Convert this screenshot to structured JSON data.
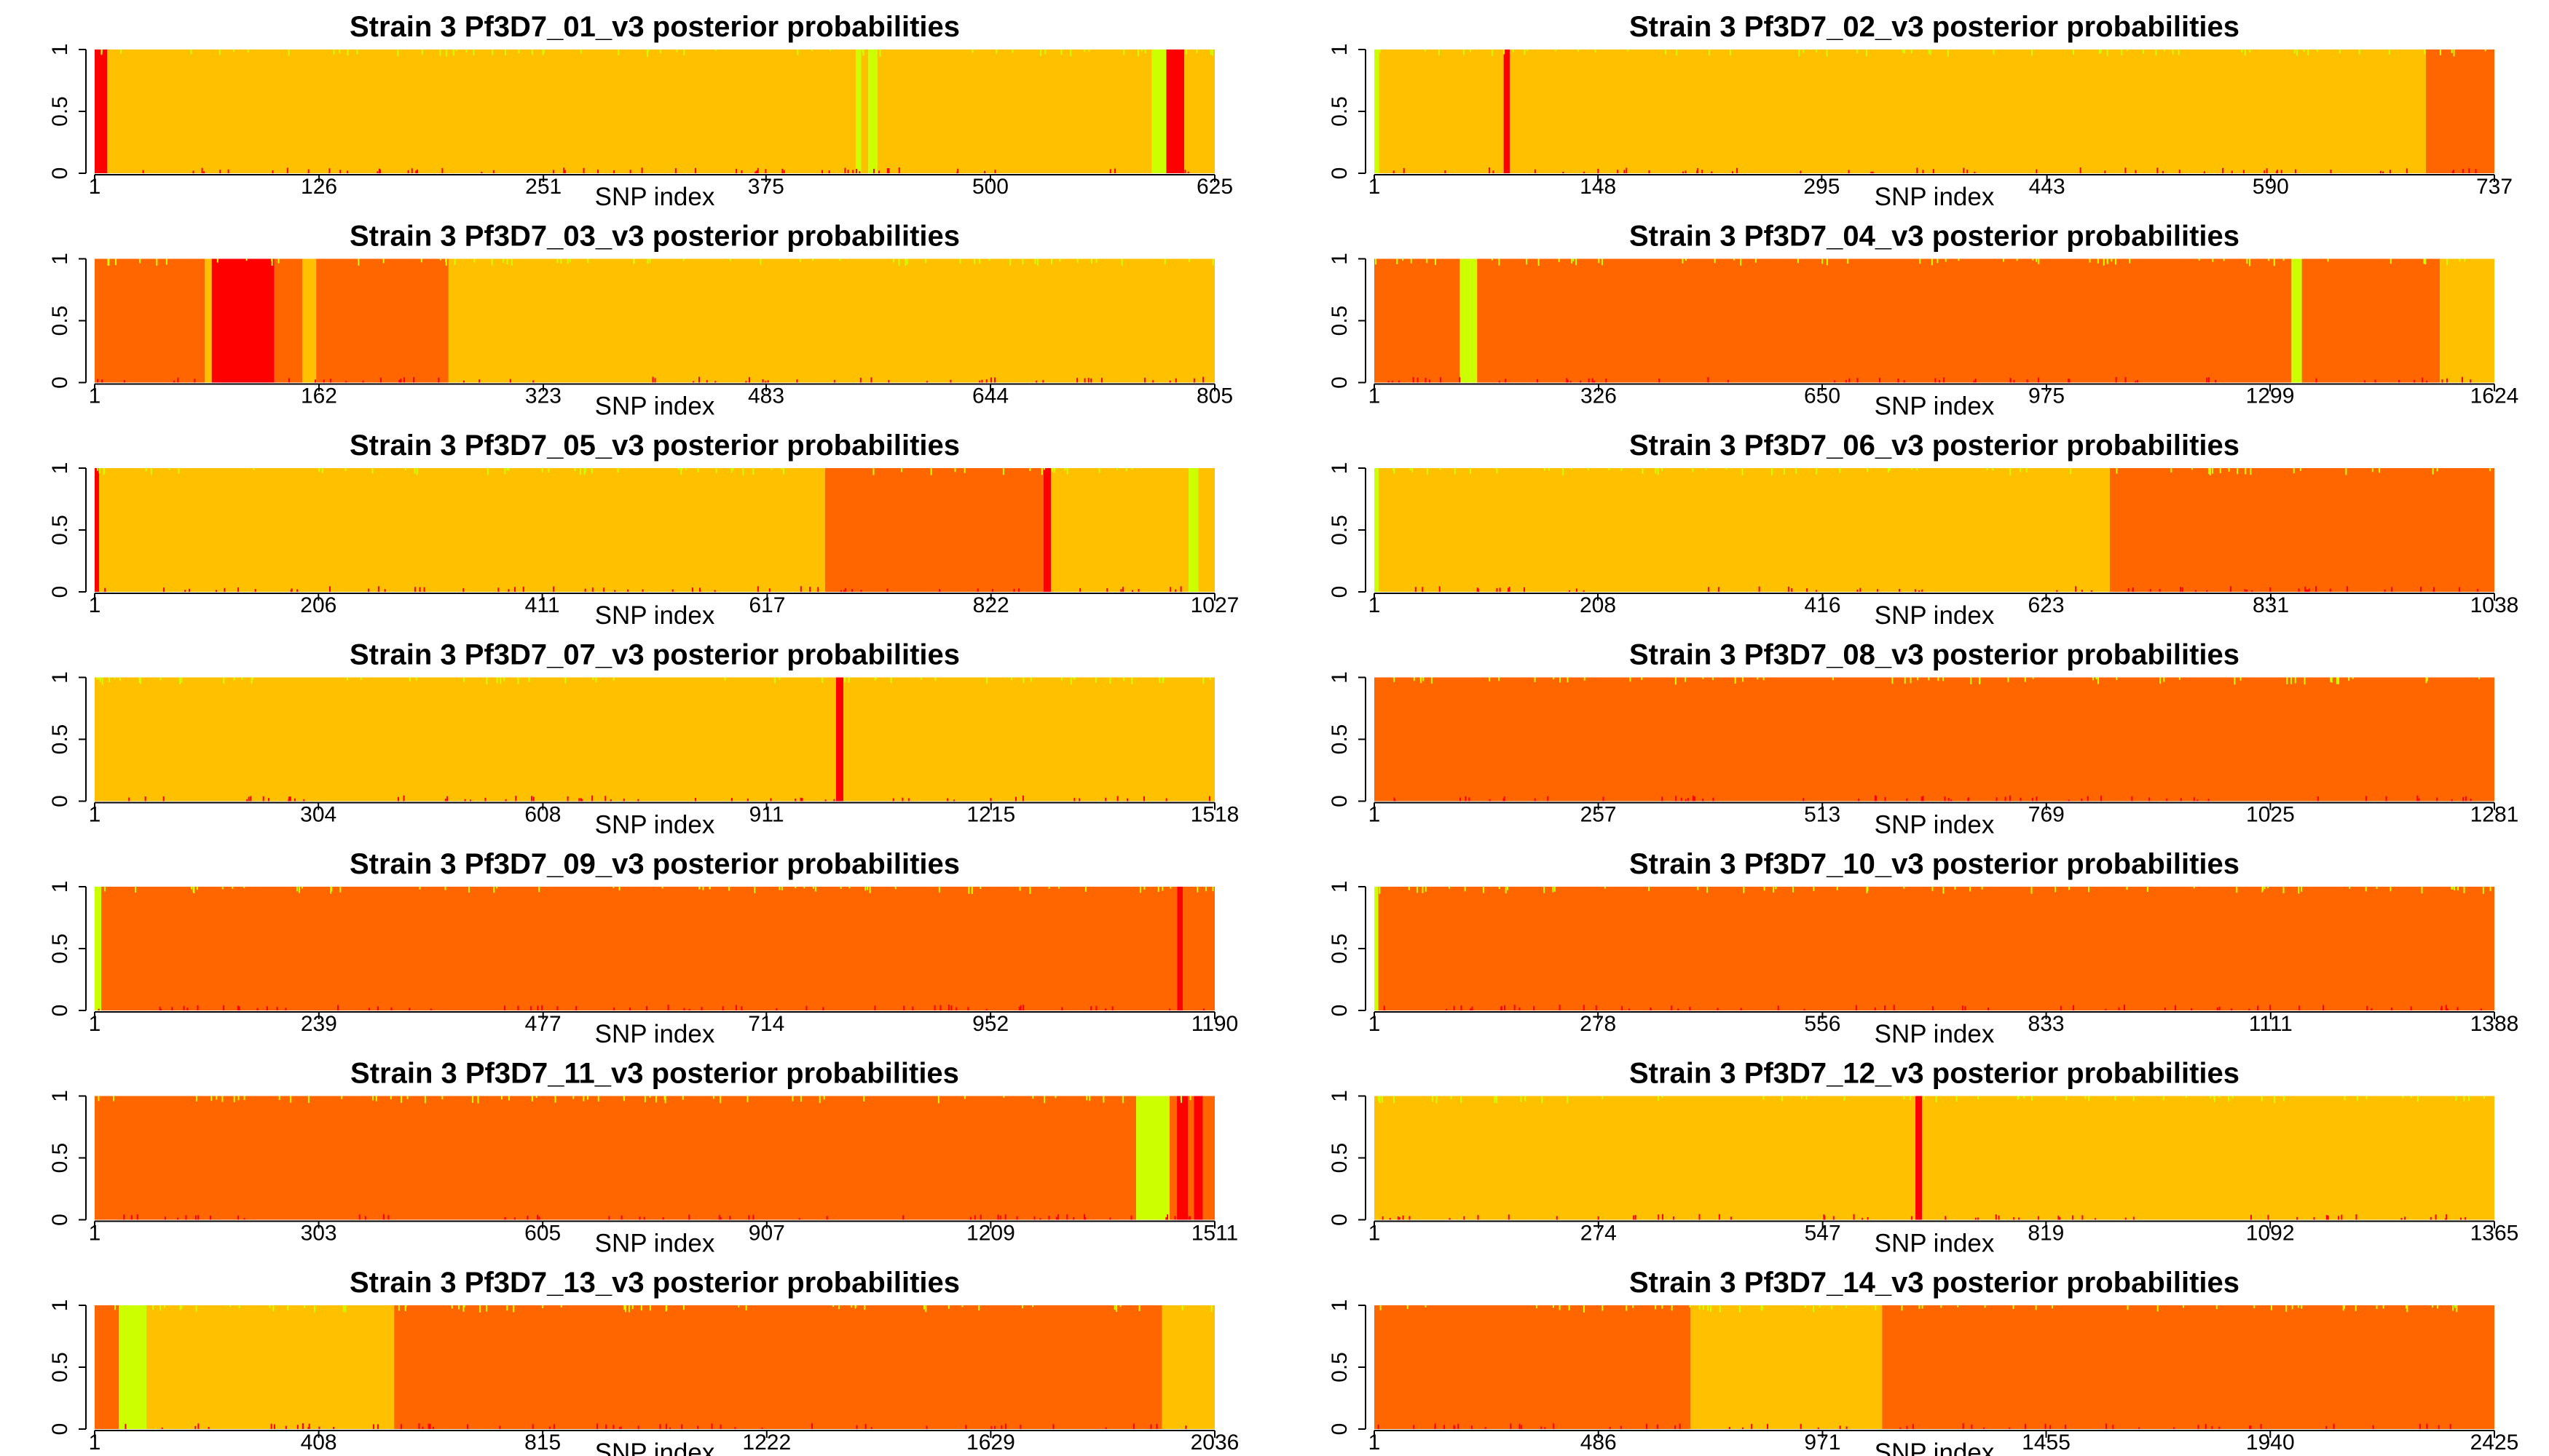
{
  "colors": {
    "yellow_orange": "#FFC000",
    "dark_orange": "#FF6600",
    "red": "#FF0000",
    "lime": "#CCFF00",
    "axis": "#000000",
    "tick_label": "#000000"
  },
  "chart_data": [
    {
      "type": "area",
      "title": "Strain 3 Pf3D7_01_v3 posterior probabilities",
      "xlabel": "SNP index",
      "ylabel": "",
      "xlim": [
        1,
        625
      ],
      "ylim": [
        0,
        1
      ],
      "x_ticks": [
        "1",
        "126",
        "251",
        "375",
        "500",
        "625"
      ],
      "y_ticks": [
        "0",
        "0.5",
        "1"
      ],
      "segments": [
        {
          "start": 1,
          "end": 8,
          "color": "red"
        },
        {
          "start": 8,
          "end": 425,
          "color": "yellow_orange"
        },
        {
          "start": 425,
          "end": 428,
          "color": "lime"
        },
        {
          "start": 428,
          "end": 432,
          "color": "yellow_orange"
        },
        {
          "start": 432,
          "end": 437,
          "color": "lime"
        },
        {
          "start": 437,
          "end": 590,
          "color": "yellow_orange"
        },
        {
          "start": 590,
          "end": 598,
          "color": "lime"
        },
        {
          "start": 598,
          "end": 608,
          "color": "red"
        },
        {
          "start": 608,
          "end": 625,
          "color": "yellow_orange"
        }
      ]
    },
    {
      "type": "area",
      "title": "Strain 3 Pf3D7_02_v3 posterior probabilities",
      "xlabel": "SNP index",
      "ylabel": "",
      "xlim": [
        1,
        737
      ],
      "ylim": [
        0,
        1
      ],
      "x_ticks": [
        "1",
        "148",
        "295",
        "443",
        "590",
        "737"
      ],
      "y_ticks": [
        "0",
        "0.5",
        "1"
      ],
      "segments": [
        {
          "start": 1,
          "end": 4,
          "color": "lime"
        },
        {
          "start": 4,
          "end": 86,
          "color": "yellow_orange"
        },
        {
          "start": 86,
          "end": 90,
          "color": "red"
        },
        {
          "start": 90,
          "end": 692,
          "color": "yellow_orange"
        },
        {
          "start": 692,
          "end": 737,
          "color": "dark_orange"
        }
      ]
    },
    {
      "type": "area",
      "title": "Strain 3 Pf3D7_03_v3 posterior probabilities",
      "xlabel": "SNP index",
      "ylabel": "",
      "xlim": [
        1,
        805
      ],
      "ylim": [
        0,
        1
      ],
      "x_ticks": [
        "1",
        "162",
        "323",
        "483",
        "644",
        "805"
      ],
      "y_ticks": [
        "0",
        "0.5",
        "1"
      ],
      "segments": [
        {
          "start": 1,
          "end": 80,
          "color": "dark_orange"
        },
        {
          "start": 80,
          "end": 85,
          "color": "yellow_orange"
        },
        {
          "start": 85,
          "end": 130,
          "color": "red"
        },
        {
          "start": 130,
          "end": 150,
          "color": "dark_orange"
        },
        {
          "start": 150,
          "end": 160,
          "color": "yellow_orange"
        },
        {
          "start": 160,
          "end": 255,
          "color": "dark_orange"
        },
        {
          "start": 255,
          "end": 805,
          "color": "yellow_orange"
        }
      ]
    },
    {
      "type": "area",
      "title": "Strain 3 Pf3D7_04_v3 posterior probabilities",
      "xlabel": "SNP index",
      "ylabel": "",
      "xlim": [
        1,
        1624
      ],
      "ylim": [
        0,
        1
      ],
      "x_ticks": [
        "1",
        "326",
        "650",
        "975",
        "1299",
        "1624"
      ],
      "y_ticks": [
        "0",
        "0.5",
        "1"
      ],
      "segments": [
        {
          "start": 1,
          "end": 125,
          "color": "dark_orange"
        },
        {
          "start": 125,
          "end": 150,
          "color": "lime"
        },
        {
          "start": 150,
          "end": 1330,
          "color": "dark_orange"
        },
        {
          "start": 1330,
          "end": 1345,
          "color": "lime"
        },
        {
          "start": 1345,
          "end": 1545,
          "color": "dark_orange"
        },
        {
          "start": 1545,
          "end": 1624,
          "color": "yellow_orange"
        }
      ]
    },
    {
      "type": "area",
      "title": "Strain 3 Pf3D7_05_v3 posterior probabilities",
      "xlabel": "SNP index",
      "ylabel": "",
      "xlim": [
        1,
        1027
      ],
      "ylim": [
        0,
        1
      ],
      "x_ticks": [
        "1",
        "206",
        "411",
        "617",
        "822",
        "1027"
      ],
      "y_ticks": [
        "0",
        "0.5",
        "1"
      ],
      "segments": [
        {
          "start": 1,
          "end": 5,
          "color": "red"
        },
        {
          "start": 5,
          "end": 670,
          "color": "yellow_orange"
        },
        {
          "start": 670,
          "end": 870,
          "color": "dark_orange"
        },
        {
          "start": 870,
          "end": 877,
          "color": "red"
        },
        {
          "start": 877,
          "end": 1003,
          "color": "yellow_orange"
        },
        {
          "start": 1003,
          "end": 1012,
          "color": "lime"
        },
        {
          "start": 1012,
          "end": 1027,
          "color": "yellow_orange"
        }
      ]
    },
    {
      "type": "area",
      "title": "Strain 3 Pf3D7_06_v3 posterior probabilities",
      "xlabel": "SNP index",
      "ylabel": "",
      "xlim": [
        1,
        1038
      ],
      "ylim": [
        0,
        1
      ],
      "x_ticks": [
        "1",
        "208",
        "416",
        "623",
        "831",
        "1038"
      ],
      "y_ticks": [
        "0",
        "0.5",
        "1"
      ],
      "segments": [
        {
          "start": 1,
          "end": 5,
          "color": "lime"
        },
        {
          "start": 5,
          "end": 682,
          "color": "yellow_orange"
        },
        {
          "start": 682,
          "end": 1038,
          "color": "dark_orange"
        }
      ]
    },
    {
      "type": "area",
      "title": "Strain 3 Pf3D7_07_v3 posterior probabilities",
      "xlabel": "SNP index",
      "ylabel": "",
      "xlim": [
        1,
        1518
      ],
      "ylim": [
        0,
        1
      ],
      "x_ticks": [
        "1",
        "304",
        "608",
        "911",
        "1215",
        "1518"
      ],
      "y_ticks": [
        "0",
        "0.5",
        "1"
      ],
      "segments": [
        {
          "start": 1,
          "end": 1005,
          "color": "yellow_orange"
        },
        {
          "start": 1005,
          "end": 1015,
          "color": "red"
        },
        {
          "start": 1015,
          "end": 1518,
          "color": "yellow_orange"
        }
      ]
    },
    {
      "type": "area",
      "title": "Strain 3 Pf3D7_08_v3 posterior probabilities",
      "xlabel": "SNP index",
      "ylabel": "",
      "xlim": [
        1,
        1281
      ],
      "ylim": [
        0,
        1
      ],
      "x_ticks": [
        "1",
        "257",
        "513",
        "769",
        "1025",
        "1281"
      ],
      "y_ticks": [
        "0",
        "0.5",
        "1"
      ],
      "segments": [
        {
          "start": 1,
          "end": 1281,
          "color": "dark_orange"
        }
      ]
    },
    {
      "type": "area",
      "title": "Strain 3 Pf3D7_09_v3 posterior probabilities",
      "xlabel": "SNP index",
      "ylabel": "",
      "xlim": [
        1,
        1190
      ],
      "ylim": [
        0,
        1
      ],
      "x_ticks": [
        "1",
        "239",
        "477",
        "714",
        "952",
        "1190"
      ],
      "y_ticks": [
        "0",
        "0.5",
        "1"
      ],
      "segments": [
        {
          "start": 1,
          "end": 8,
          "color": "lime"
        },
        {
          "start": 8,
          "end": 1150,
          "color": "dark_orange"
        },
        {
          "start": 1150,
          "end": 1156,
          "color": "red"
        },
        {
          "start": 1156,
          "end": 1190,
          "color": "dark_orange"
        }
      ]
    },
    {
      "type": "area",
      "title": "Strain 3 Pf3D7_10_v3 posterior probabilities",
      "xlabel": "SNP index",
      "ylabel": "",
      "xlim": [
        1,
        1388
      ],
      "ylim": [
        0,
        1
      ],
      "x_ticks": [
        "1",
        "278",
        "556",
        "833",
        "1111",
        "1388"
      ],
      "y_ticks": [
        "0",
        "0.5",
        "1"
      ],
      "segments": [
        {
          "start": 1,
          "end": 6,
          "color": "lime"
        },
        {
          "start": 6,
          "end": 1388,
          "color": "dark_orange"
        }
      ]
    },
    {
      "type": "area",
      "title": "Strain 3 Pf3D7_11_v3 posterior probabilities",
      "xlabel": "SNP index",
      "ylabel": "",
      "xlim": [
        1,
        1511
      ],
      "ylim": [
        0,
        1
      ],
      "x_ticks": [
        "1",
        "303",
        "605",
        "907",
        "1209",
        "1511"
      ],
      "y_ticks": [
        "0",
        "0.5",
        "1"
      ],
      "segments": [
        {
          "start": 1,
          "end": 1405,
          "color": "dark_orange"
        },
        {
          "start": 1405,
          "end": 1450,
          "color": "lime"
        },
        {
          "start": 1450,
          "end": 1460,
          "color": "dark_orange"
        },
        {
          "start": 1460,
          "end": 1475,
          "color": "red"
        },
        {
          "start": 1475,
          "end": 1483,
          "color": "dark_orange"
        },
        {
          "start": 1483,
          "end": 1495,
          "color": "red"
        },
        {
          "start": 1495,
          "end": 1511,
          "color": "dark_orange"
        }
      ]
    },
    {
      "type": "area",
      "title": "Strain 3 Pf3D7_12_v3 posterior probabilities",
      "xlabel": "SNP index",
      "ylabel": "",
      "xlim": [
        1,
        1365
      ],
      "ylim": [
        0,
        1
      ],
      "x_ticks": [
        "1",
        "274",
        "547",
        "819",
        "1092",
        "1365"
      ],
      "y_ticks": [
        "0",
        "0.5",
        "1"
      ],
      "segments": [
        {
          "start": 1,
          "end": 660,
          "color": "yellow_orange"
        },
        {
          "start": 660,
          "end": 668,
          "color": "red"
        },
        {
          "start": 668,
          "end": 1365,
          "color": "yellow_orange"
        }
      ]
    },
    {
      "type": "area",
      "title": "Strain 3 Pf3D7_13_v3 posterior probabilities",
      "xlabel": "SNP index",
      "ylabel": "",
      "xlim": [
        1,
        2036
      ],
      "ylim": [
        0,
        1
      ],
      "x_ticks": [
        "1",
        "408",
        "815",
        "1222",
        "1629",
        "2036"
      ],
      "y_ticks": [
        "0",
        "0.5",
        "1"
      ],
      "segments": [
        {
          "start": 1,
          "end": 45,
          "color": "dark_orange"
        },
        {
          "start": 45,
          "end": 95,
          "color": "lime"
        },
        {
          "start": 95,
          "end": 545,
          "color": "yellow_orange"
        },
        {
          "start": 545,
          "end": 1940,
          "color": "dark_orange"
        },
        {
          "start": 1940,
          "end": 2036,
          "color": "yellow_orange"
        }
      ]
    },
    {
      "type": "area",
      "title": "Strain 3 Pf3D7_14_v3 posterior probabilities",
      "xlabel": "SNP index",
      "ylabel": "",
      "xlim": [
        1,
        2425
      ],
      "ylim": [
        0,
        1
      ],
      "x_ticks": [
        "1",
        "486",
        "971",
        "1455",
        "1940",
        "2425"
      ],
      "y_ticks": [
        "0",
        "0.5",
        "1"
      ],
      "segments": [
        {
          "start": 1,
          "end": 685,
          "color": "dark_orange"
        },
        {
          "start": 685,
          "end": 1100,
          "color": "yellow_orange"
        },
        {
          "start": 1100,
          "end": 2425,
          "color": "dark_orange"
        }
      ]
    }
  ]
}
